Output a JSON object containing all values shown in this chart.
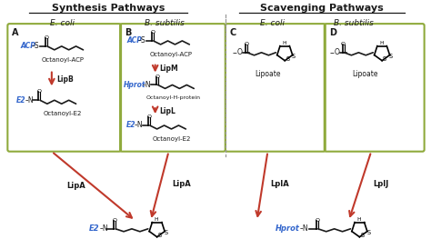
{
  "title_synthesis": "Synthesis Pathways",
  "title_scavenging": "Scavenging Pathways",
  "ecoli_label": "E. coli",
  "bsubtilis_label": "B. subtilis",
  "box_color": "#8faa3c",
  "arrow_color": "#c0392b",
  "blue_color": "#3366cc",
  "black_color": "#1a1a1a",
  "bg_color": "#ffffff",
  "enzyme_LipB": "LipB",
  "enzyme_LipM": "LipM",
  "enzyme_LipL": "LipL",
  "enzyme_LipA": "LipA",
  "enzyme_LplA": "LplA",
  "enzyme_LplJ": "LplJ",
  "label_OctACP": "Octanoyl-ACP",
  "label_OctE2": "Octanoyl-E2",
  "label_OctHprot": "Octanoyl-H-protein",
  "label_Lipoate": "Lipoate"
}
